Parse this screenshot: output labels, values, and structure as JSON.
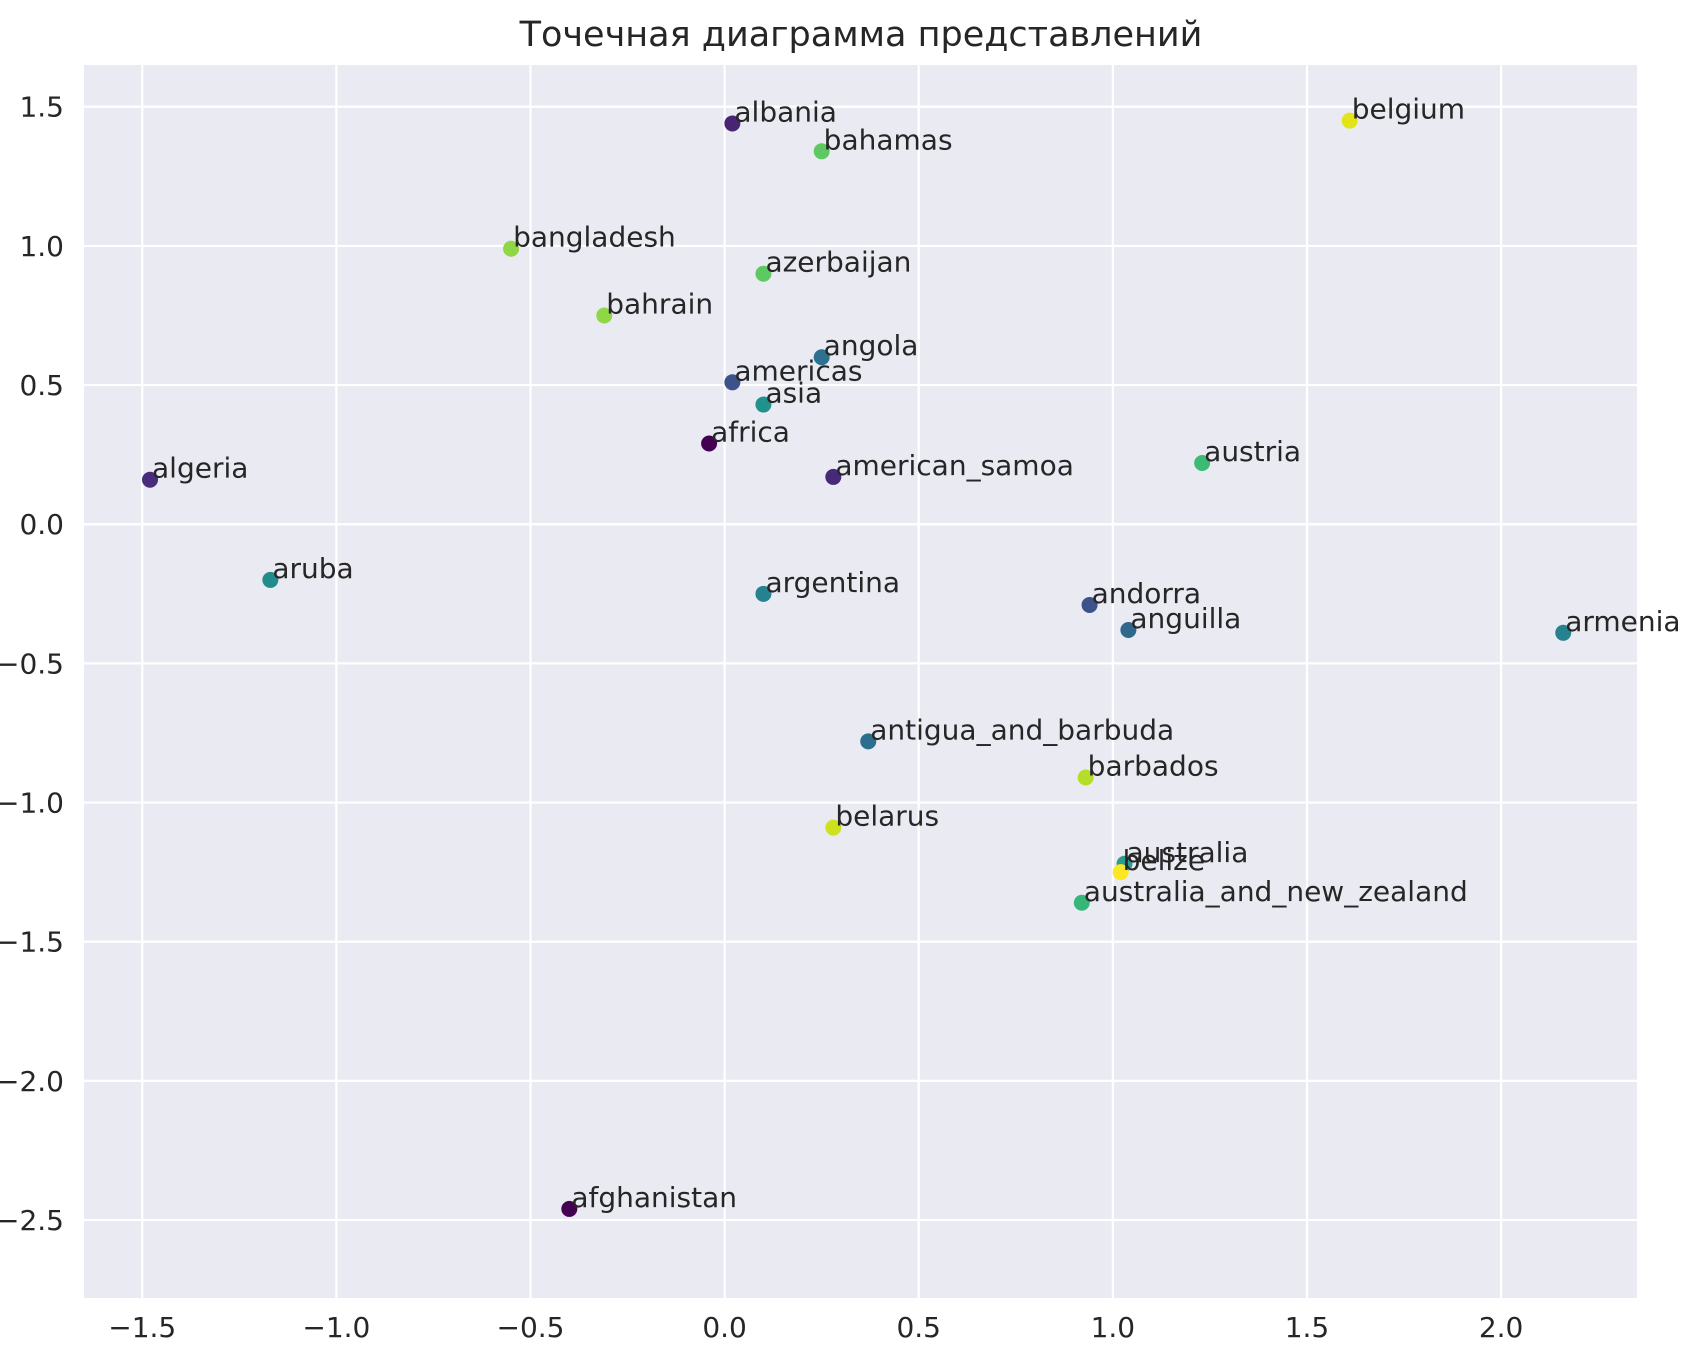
{
  "chart_data": {
    "type": "scatter",
    "title": "Точечная диаграмма представлений",
    "xlabel": "",
    "ylabel": "",
    "xlim": [
      -1.65,
      2.35
    ],
    "ylim": [
      -2.78,
      1.65
    ],
    "grid": true,
    "legend": "none",
    "background_color": "#eaeaf2",
    "grid_color": "#ffffff",
    "xticks": [
      {
        "value": -1.5,
        "label": "−1.5"
      },
      {
        "value": -1.0,
        "label": "−1.0"
      },
      {
        "value": -0.5,
        "label": "−0.5"
      },
      {
        "value": 0.0,
        "label": "0.0"
      },
      {
        "value": 0.5,
        "label": "0.5"
      },
      {
        "value": 1.0,
        "label": "1.0"
      },
      {
        "value": 1.5,
        "label": "1.5"
      },
      {
        "value": 2.0,
        "label": "2.0"
      }
    ],
    "yticks": [
      {
        "value": 1.5,
        "label": "1.5"
      },
      {
        "value": 1.0,
        "label": "1.0"
      },
      {
        "value": 0.5,
        "label": "0.5"
      },
      {
        "value": 0.0,
        "label": "0.0"
      },
      {
        "value": -0.5,
        "label": "−0.5"
      },
      {
        "value": -1.0,
        "label": "−1.0"
      },
      {
        "value": -1.5,
        "label": "−1.5"
      },
      {
        "value": -2.0,
        "label": "−2.0"
      },
      {
        "value": -2.5,
        "label": "−2.5"
      }
    ],
    "points": [
      {
        "label": "albania",
        "x": 0.02,
        "y": 1.44,
        "color": "#482475"
      },
      {
        "label": "belgium",
        "x": 1.61,
        "y": 1.45,
        "color": "#e3e418"
      },
      {
        "label": "bahamas",
        "x": 0.25,
        "y": 1.34,
        "color": "#5ec962"
      },
      {
        "label": "bangladesh",
        "x": -0.55,
        "y": 0.99,
        "color": "#8fd744"
      },
      {
        "label": "azerbaijan",
        "x": 0.1,
        "y": 0.9,
        "color": "#5ec962"
      },
      {
        "label": "bahrain",
        "x": -0.31,
        "y": 0.75,
        "color": "#8fd744"
      },
      {
        "label": "angola",
        "x": 0.25,
        "y": 0.6,
        "color": "#2c728e"
      },
      {
        "label": "americas",
        "x": 0.02,
        "y": 0.51,
        "color": "#3b528b"
      },
      {
        "label": "asia",
        "x": 0.1,
        "y": 0.43,
        "color": "#21918c"
      },
      {
        "label": "africa",
        "x": -0.04,
        "y": 0.29,
        "color": "#440154"
      },
      {
        "label": "algeria",
        "x": -1.48,
        "y": 0.16,
        "color": "#472d7b"
      },
      {
        "label": "american_samoa",
        "x": 0.28,
        "y": 0.17,
        "color": "#482878"
      },
      {
        "label": "austria",
        "x": 1.23,
        "y": 0.22,
        "color": "#3cbb75"
      },
      {
        "label": "aruba",
        "x": -1.17,
        "y": -0.2,
        "color": "#228c8d"
      },
      {
        "label": "argentina",
        "x": 0.1,
        "y": -0.25,
        "color": "#26828e"
      },
      {
        "label": "andorra",
        "x": 0.94,
        "y": -0.29,
        "color": "#3b528b"
      },
      {
        "label": "anguilla",
        "x": 1.04,
        "y": -0.38,
        "color": "#31688e"
      },
      {
        "label": "armenia",
        "x": 2.16,
        "y": -0.39,
        "color": "#26828e"
      },
      {
        "label": "antigua_and_barbuda",
        "x": 0.37,
        "y": -0.78,
        "color": "#2c6e8e"
      },
      {
        "label": "barbados",
        "x": 0.93,
        "y": -0.91,
        "color": "#b5de2b"
      },
      {
        "label": "belarus",
        "x": 0.28,
        "y": -1.09,
        "color": "#cde11d"
      },
      {
        "label": "australia",
        "x": 1.03,
        "y": -1.22,
        "color": "#2a9d8f"
      },
      {
        "label": "belize",
        "x": 1.02,
        "y": -1.25,
        "color": "#fde725"
      },
      {
        "label": "australia_and_new_zealand",
        "x": 0.92,
        "y": -1.36,
        "color": "#35b779"
      },
      {
        "label": "afghanistan",
        "x": -0.4,
        "y": -2.46,
        "color": "#440154"
      }
    ]
  }
}
